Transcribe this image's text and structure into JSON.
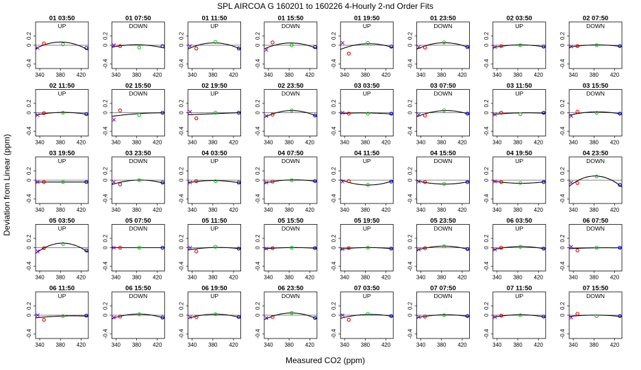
{
  "chart_data": {
    "type": "scatter",
    "title": "SPL   AIRCOA G   160201 to 160226   4-Hourly 2-nd Order Fits",
    "xlabel": "Measured CO2 (ppm)",
    "ylabel": "Deviation from Linear (ppm)",
    "xlim": [
      332,
      434
    ],
    "ylim": [
      -0.5,
      0.5
    ],
    "xticks": [
      340,
      380,
      420
    ],
    "yticks": [
      -0.4,
      0.0,
      0.2
    ],
    "ytick_labels": [
      "-0.4",
      "0",
      "0.2"
    ],
    "xtick_labels": [
      "340",
      "380",
      "420"
    ],
    "standard_x": [
      336,
      348,
      385,
      430
    ],
    "marker_colors": [
      "#8800cc",
      "#dd0000",
      "#22bb22",
      "#0000cc"
    ],
    "panels": [
      {
        "time": "01 03:50",
        "direction": "UP",
        "y": [
          -0.06,
          0.04,
          0.02,
          -0.06
        ],
        "c": -0.15
      },
      {
        "time": "01 07:50",
        "direction": "DOWN",
        "y": [
          0.0,
          -0.02,
          -0.05,
          -0.02
        ],
        "c": -0.06
      },
      {
        "time": "01 11:50",
        "direction": "UP",
        "y": [
          -0.02,
          -0.07,
          0.07,
          -0.07
        ],
        "c": -0.13
      },
      {
        "time": "01 15:50",
        "direction": "DOWN",
        "y": [
          -0.1,
          0.06,
          0.0,
          -0.04
        ],
        "c": -0.12
      },
      {
        "time": "01 19:50",
        "direction": "UP",
        "y": [
          0.05,
          -0.18,
          0.05,
          -0.03
        ],
        "c": -0.1
      },
      {
        "time": "01 23:50",
        "direction": "DOWN",
        "y": [
          -0.04,
          -0.05,
          0.06,
          -0.04
        ],
        "c": -0.12
      },
      {
        "time": "02 03:50",
        "direction": "UP",
        "y": [
          -0.04,
          -0.02,
          0.0,
          -0.03
        ],
        "c": -0.05
      },
      {
        "time": "02 07:50",
        "direction": "DOWN",
        "y": [
          -0.03,
          -0.02,
          0.0,
          -0.02
        ],
        "c": -0.04
      },
      {
        "time": "02 11:50",
        "direction": "UP",
        "y": [
          -0.05,
          -0.01,
          0.0,
          -0.03
        ],
        "c": -0.05
      },
      {
        "time": "02 15:50",
        "direction": "DOWN",
        "y": [
          -0.15,
          0.05,
          -0.05,
          0.0
        ],
        "c": -0.02
      },
      {
        "time": "02 19:50",
        "direction": "UP",
        "y": [
          0.02,
          -0.12,
          0.0,
          0.0
        ],
        "c": 0.0
      },
      {
        "time": "02 23:50",
        "direction": "DOWN",
        "y": [
          -0.07,
          -0.04,
          0.05,
          -0.06
        ],
        "c": -0.13
      },
      {
        "time": "03 03:50",
        "direction": "UP",
        "y": [
          0.0,
          -0.02,
          -0.02,
          -0.02
        ],
        "c": -0.02
      },
      {
        "time": "03 07:50",
        "direction": "DOWN",
        "y": [
          -0.04,
          -0.06,
          0.05,
          -0.02
        ],
        "c": -0.1
      },
      {
        "time": "03 11:50",
        "direction": "UP",
        "y": [
          -0.04,
          0.0,
          -0.03,
          0.0
        ],
        "c": -0.02
      },
      {
        "time": "03 15:50",
        "direction": "DOWN",
        "y": [
          -0.07,
          0.02,
          0.0,
          -0.02
        ],
        "c": -0.06
      },
      {
        "time": "03 19:50",
        "direction": "UP",
        "y": [
          -0.04,
          -0.04,
          -0.04,
          -0.04
        ],
        "c": 0.0
      },
      {
        "time": "03 23:50",
        "direction": "DOWN",
        "y": [
          -0.04,
          -0.09,
          0.0,
          -0.05
        ],
        "c": -0.08
      },
      {
        "time": "04 03:50",
        "direction": "UP",
        "y": [
          -0.05,
          -0.02,
          -0.02,
          -0.05
        ],
        "c": -0.05
      },
      {
        "time": "04 07:50",
        "direction": "DOWN",
        "y": [
          -0.05,
          -0.03,
          0.0,
          -0.02
        ],
        "c": -0.05
      },
      {
        "time": "04 11:50",
        "direction": "UP",
        "y": [
          -0.03,
          -0.02,
          -0.1,
          -0.03
        ],
        "c": 0.1
      },
      {
        "time": "04 15:50",
        "direction": "DOWN",
        "y": [
          -0.03,
          -0.04,
          -0.08,
          -0.04
        ],
        "c": 0.06
      },
      {
        "time": "04 19:50",
        "direction": "UP",
        "y": [
          -0.03,
          -0.04,
          -0.06,
          -0.04
        ],
        "c": 0.04
      },
      {
        "time": "04 23:50",
        "direction": "DOWN",
        "y": [
          -0.05,
          -0.06,
          0.08,
          -0.1
        ],
        "c": -0.22
      },
      {
        "time": "05 03:50",
        "direction": "UP",
        "y": [
          -0.08,
          -0.01,
          0.08,
          -0.06
        ],
        "c": -0.2
      },
      {
        "time": "05 07:50",
        "direction": "DOWN",
        "y": [
          0.0,
          0.0,
          0.0,
          0.0
        ],
        "c": 0.0
      },
      {
        "time": "05 11:50",
        "direction": "UP",
        "y": [
          0.0,
          -0.08,
          0.02,
          -0.02
        ],
        "c": -0.04
      },
      {
        "time": "05 15:50",
        "direction": "DOWN",
        "y": [
          -0.02,
          -0.01,
          0.0,
          -0.01
        ],
        "c": -0.02
      },
      {
        "time": "05 19:50",
        "direction": "UP",
        "y": [
          -0.03,
          -0.01,
          0.0,
          -0.02
        ],
        "c": -0.03
      },
      {
        "time": "05 23:50",
        "direction": "DOWN",
        "y": [
          -0.04,
          -0.01,
          0.03,
          -0.03
        ],
        "c": -0.08
      },
      {
        "time": "06 03:50",
        "direction": "UP",
        "y": [
          -0.04,
          0.0,
          0.02,
          -0.02
        ],
        "c": -0.06
      },
      {
        "time": "06 07:50",
        "direction": "DOWN",
        "y": [
          0.02,
          -0.06,
          0.0,
          0.0
        ],
        "c": -0.01
      },
      {
        "time": "06 11:50",
        "direction": "UP",
        "y": [
          0.0,
          -0.1,
          -0.02,
          -0.01
        ],
        "c": -0.02
      },
      {
        "time": "06 15:50",
        "direction": "DOWN",
        "y": [
          -0.05,
          -0.03,
          0.02,
          -0.05
        ],
        "c": -0.09
      },
      {
        "time": "06 19:50",
        "direction": "UP",
        "y": [
          -0.04,
          -0.04,
          0.02,
          -0.04
        ],
        "c": -0.08
      },
      {
        "time": "06 23:50",
        "direction": "DOWN",
        "y": [
          -0.06,
          -0.04,
          0.05,
          -0.06
        ],
        "c": -0.13
      },
      {
        "time": "07 03:50",
        "direction": "UP",
        "y": [
          0.0,
          -0.1,
          0.03,
          -0.02
        ],
        "c": -0.06
      },
      {
        "time": "07 07:50",
        "direction": "DOWN",
        "y": [
          -0.04,
          -0.03,
          0.0,
          -0.02
        ],
        "c": -0.05
      },
      {
        "time": "07 11:50",
        "direction": "UP",
        "y": [
          -0.04,
          -0.01,
          0.0,
          -0.03
        ],
        "c": -0.05
      },
      {
        "time": "07 15:50",
        "direction": "DOWN",
        "y": [
          -0.05,
          0.03,
          -0.02,
          -0.02
        ],
        "c": -0.03
      }
    ]
  }
}
